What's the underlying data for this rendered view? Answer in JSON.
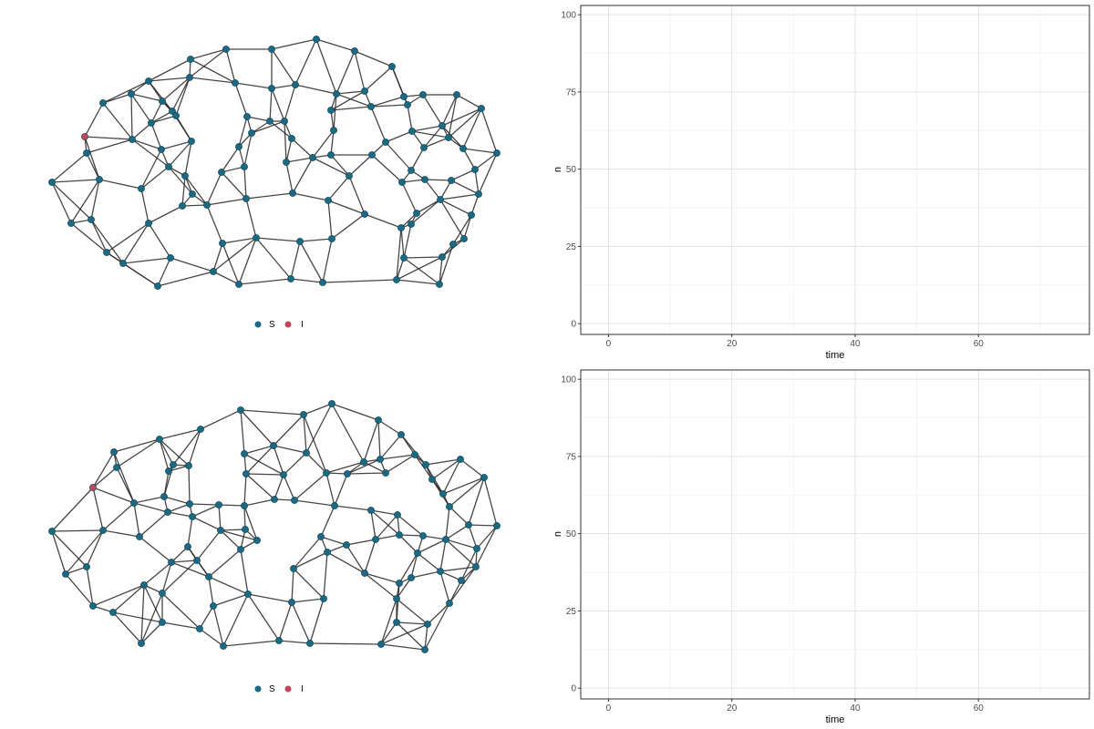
{
  "colors": {
    "S": "#1b6a83",
    "I": "#c0485a",
    "edge": "#262626"
  },
  "chart_data": [
    {
      "type": "network",
      "legend": {
        "placement": "bottom",
        "entries": [
          {
            "label": "S",
            "state": "S"
          },
          {
            "label": "I",
            "state": "I"
          }
        ]
      },
      "nodes": [
        [
          347,
          43,
          "S"
        ],
        [
          298,
          54,
          "S"
        ],
        [
          248,
          54,
          "S"
        ],
        [
          389,
          56,
          "S"
        ],
        [
          209,
          65,
          "S"
        ],
        [
          163,
          89,
          "S"
        ],
        [
          430,
          73,
          "S"
        ],
        [
          258,
          91,
          "S"
        ],
        [
          208,
          85,
          "S"
        ],
        [
          298,
          97,
          "S"
        ],
        [
          324,
          93,
          "S"
        ],
        [
          369,
          103,
          "S"
        ],
        [
          400,
          100,
          "S"
        ],
        [
          443,
          106,
          "S"
        ],
        [
          113,
          113,
          "S"
        ],
        [
          144,
          103,
          "S"
        ],
        [
          178,
          111,
          "S"
        ],
        [
          189,
          122,
          "S"
        ],
        [
          193,
          127,
          "S"
        ],
        [
          271,
          128,
          "S"
        ],
        [
          296,
          133,
          "S"
        ],
        [
          312,
          133,
          "S"
        ],
        [
          363,
          121,
          "S"
        ],
        [
          407,
          117,
          "S"
        ],
        [
          447,
          115,
          "S"
        ],
        [
          464,
          104,
          "S"
        ],
        [
          501,
          104,
          "S"
        ],
        [
          528,
          119,
          "S"
        ],
        [
          485,
          138,
          "S"
        ],
        [
          93,
          150,
          "I"
        ],
        [
          95,
          168,
          "S"
        ],
        [
          145,
          153,
          "S"
        ],
        [
          166,
          135,
          "S"
        ],
        [
          177,
          164,
          "S"
        ],
        [
          210,
          155,
          "S"
        ],
        [
          185,
          183,
          "S"
        ],
        [
          262,
          161,
          "S"
        ],
        [
          276,
          146,
          "S"
        ],
        [
          320,
          152,
          "S"
        ],
        [
          366,
          143,
          "S"
        ],
        [
          423,
          156,
          "S"
        ],
        [
          452,
          144,
          "S"
        ],
        [
          465,
          162,
          "S"
        ],
        [
          492,
          151,
          "S"
        ],
        [
          508,
          163,
          "S"
        ],
        [
          545,
          168,
          "S"
        ],
        [
          57,
          200,
          "S"
        ],
        [
          109,
          197,
          "S"
        ],
        [
          155,
          207,
          "S"
        ],
        [
          203,
          193,
          "S"
        ],
        [
          243,
          189,
          "S"
        ],
        [
          268,
          183,
          "S"
        ],
        [
          314,
          178,
          "S"
        ],
        [
          343,
          173,
          "S"
        ],
        [
          363,
          170,
          "S"
        ],
        [
          383,
          193,
          "S"
        ],
        [
          408,
          170,
          "S"
        ],
        [
          441,
          200,
          "S"
        ],
        [
          451,
          187,
          "S"
        ],
        [
          466,
          197,
          "S"
        ],
        [
          495,
          198,
          "S"
        ],
        [
          521,
          186,
          "S"
        ],
        [
          211,
          213,
          "S"
        ],
        [
          227,
          225,
          "S"
        ],
        [
          270,
          218,
          "S"
        ],
        [
          321,
          212,
          "S"
        ],
        [
          360,
          220,
          "S"
        ],
        [
          400,
          235,
          "S"
        ],
        [
          457,
          234,
          "S"
        ],
        [
          483,
          219,
          "S"
        ],
        [
          525,
          213,
          "S"
        ],
        [
          78,
          245,
          "S"
        ],
        [
          100,
          241,
          "S"
        ],
        [
          163,
          245,
          "S"
        ],
        [
          200,
          226,
          "S"
        ],
        [
          440,
          250,
          "S"
        ],
        [
          451,
          246,
          "S"
        ],
        [
          517,
          236,
          "S"
        ],
        [
          117,
          277,
          "S"
        ],
        [
          187,
          283,
          "S"
        ],
        [
          244,
          267,
          "S"
        ],
        [
          281,
          261,
          "S"
        ],
        [
          329,
          265,
          "S"
        ],
        [
          364,
          262,
          "S"
        ],
        [
          443,
          283,
          "S"
        ],
        [
          485,
          282,
          "S"
        ],
        [
          509,
          262,
          "S"
        ],
        [
          135,
          289,
          "S"
        ],
        [
          173,
          314,
          "S"
        ],
        [
          234,
          298,
          "S"
        ],
        [
          262,
          312,
          "S"
        ],
        [
          319,
          306,
          "S"
        ],
        [
          354,
          310,
          "S"
        ],
        [
          435,
          307,
          "S"
        ],
        [
          482,
          312,
          "S"
        ],
        [
          497,
          268,
          "S"
        ]
      ]
    },
    {
      "type": "line",
      "title": "",
      "xlabel": "time",
      "ylabel": "n",
      "xlim": [
        -4.5,
        78
      ],
      "ylim": [
        -3.5,
        103
      ],
      "xticks": [
        0,
        20,
        40,
        60
      ],
      "yticks": [
        0,
        25,
        50,
        75,
        100
      ],
      "grid": true,
      "series": []
    },
    {
      "type": "network",
      "legend": {
        "placement": "bottom",
        "entries": [
          {
            "label": "S",
            "state": "S"
          },
          {
            "label": "I",
            "state": "I"
          }
        ]
      },
      "nodes": [
        [
          364,
          443,
          "S"
        ],
        [
          264,
          450,
          "S"
        ],
        [
          333,
          455,
          "S"
        ],
        [
          415,
          461,
          "S"
        ],
        [
          220,
          471,
          "S"
        ],
        [
          175,
          482,
          "S"
        ],
        [
          440,
          477,
          "S"
        ],
        [
          125,
          496,
          "S"
        ],
        [
          268,
          498,
          "S"
        ],
        [
          300,
          489,
          "S"
        ],
        [
          336,
          497,
          "S"
        ],
        [
          399,
          507,
          "S"
        ],
        [
          417,
          504,
          "S"
        ],
        [
          455,
          499,
          "S"
        ],
        [
          467,
          510,
          "S"
        ],
        [
          505,
          504,
          "S"
        ],
        [
          531,
          524,
          "S"
        ],
        [
          102,
          535,
          "I"
        ],
        [
          128,
          513,
          "S"
        ],
        [
          185,
          517,
          "S"
        ],
        [
          190,
          510,
          "S"
        ],
        [
          207,
          511,
          "S"
        ],
        [
          270,
          520,
          "S"
        ],
        [
          311,
          521,
          "S"
        ],
        [
          358,
          519,
          "S"
        ],
        [
          381,
          520,
          "S"
        ],
        [
          423,
          519,
          "S"
        ],
        [
          474,
          526,
          "S"
        ],
        [
          180,
          545,
          "S"
        ],
        [
          147,
          552,
          "S"
        ],
        [
          208,
          553,
          "S"
        ],
        [
          240,
          554,
          "S"
        ],
        [
          268,
          555,
          "S"
        ],
        [
          301,
          548,
          "S"
        ],
        [
          323,
          549,
          "S"
        ],
        [
          367,
          555,
          "S"
        ],
        [
          407,
          560,
          "S"
        ],
        [
          436,
          565,
          "S"
        ],
        [
          486,
          542,
          "S"
        ],
        [
          493,
          556,
          "S"
        ],
        [
          57,
          583,
          "S"
        ],
        [
          113,
          582,
          "S"
        ],
        [
          153,
          589,
          "S"
        ],
        [
          184,
          562,
          "S"
        ],
        [
          211,
          567,
          "S"
        ],
        [
          242,
          582,
          "S"
        ],
        [
          269,
          581,
          "S"
        ],
        [
          282,
          593,
          "S"
        ],
        [
          352,
          589,
          "S"
        ],
        [
          380,
          598,
          "S"
        ],
        [
          412,
          592,
          "S"
        ],
        [
          438,
          587,
          "S"
        ],
        [
          464,
          588,
          "S"
        ],
        [
          489,
          592,
          "S"
        ],
        [
          514,
          576,
          "S"
        ],
        [
          545,
          577,
          "S"
        ],
        [
          206,
          600,
          "S"
        ],
        [
          216,
          615,
          "S"
        ],
        [
          264,
          603,
          "S"
        ],
        [
          359,
          606,
          "S"
        ],
        [
          458,
          607,
          "S"
        ],
        [
          483,
          627,
          "S"
        ],
        [
          522,
          622,
          "S"
        ],
        [
          523,
          602,
          "S"
        ],
        [
          72,
          630,
          "S"
        ],
        [
          95,
          622,
          "S"
        ],
        [
          158,
          642,
          "S"
        ],
        [
          188,
          617,
          "S"
        ],
        [
          229,
          633,
          "S"
        ],
        [
          322,
          624,
          "S"
        ],
        [
          400,
          629,
          "S"
        ],
        [
          438,
          640,
          "S"
        ],
        [
          451,
          634,
          "S"
        ],
        [
          506,
          637,
          "S"
        ],
        [
          102,
          665,
          "S"
        ],
        [
          124,
          672,
          "S"
        ],
        [
          178,
          651,
          "S"
        ],
        [
          234,
          665,
          "S"
        ],
        [
          272,
          652,
          "S"
        ],
        [
          320,
          661,
          "S"
        ],
        [
          355,
          657,
          "S"
        ],
        [
          435,
          657,
          "S"
        ],
        [
          493,
          662,
          "S"
        ],
        [
          469,
          685,
          "S"
        ],
        [
          155,
          706,
          "S"
        ],
        [
          178,
          683,
          "S"
        ],
        [
          219,
          690,
          "S"
        ],
        [
          245,
          709,
          "S"
        ],
        [
          306,
          703,
          "S"
        ],
        [
          340,
          706,
          "S"
        ],
        [
          418,
          707,
          "S"
        ],
        [
          466,
          713,
          "S"
        ],
        [
          435,
          683,
          "S"
        ]
      ]
    },
    {
      "type": "line",
      "title": "",
      "xlabel": "time",
      "ylabel": "n",
      "xlim": [
        -4.5,
        78
      ],
      "ylim": [
        -3.5,
        103
      ],
      "xticks": [
        0,
        20,
        40,
        60
      ],
      "yticks": [
        0,
        25,
        50,
        75,
        100
      ],
      "grid": true,
      "series": []
    }
  ]
}
